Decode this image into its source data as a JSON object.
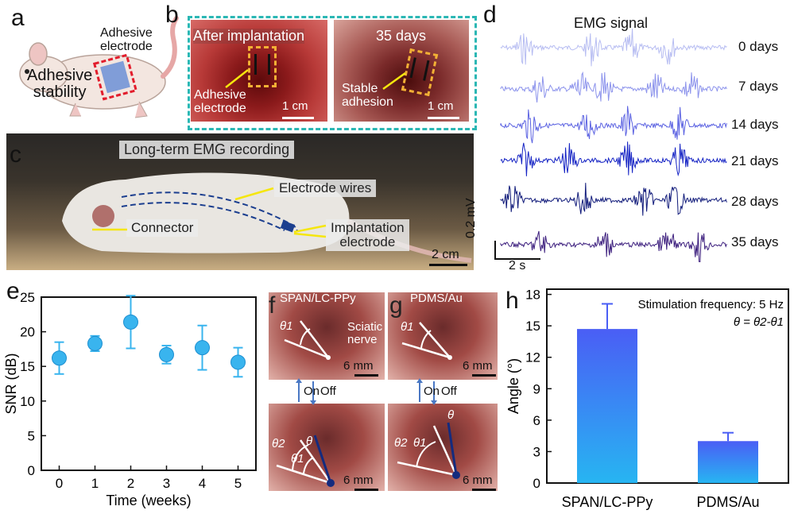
{
  "panel_labels": {
    "a": "a",
    "b": "b",
    "c": "c",
    "d": "d",
    "e": "e",
    "f": "f",
    "g": "g",
    "h": "h"
  },
  "panel_a": {
    "electrode": "Adhesive\nelectrode",
    "stability": "Adhesive\nstability"
  },
  "panel_b": {
    "left_title": "After implantation",
    "right_title": "35 days",
    "left_callout": "Adhesive\nelectrode",
    "right_callout": "Stable\nadhesion",
    "scale": "1 cm"
  },
  "panel_c": {
    "title": "Long-term EMG recording",
    "wires": "Electrode wires",
    "connector": "Connector",
    "implant": "Implantation\nelectrode",
    "scale": "2 cm"
  },
  "panel_d": {
    "title": "EMG signal",
    "rows": [
      {
        "label": "0 days",
        "color": "#b7bdf2"
      },
      {
        "label": "7 days",
        "color": "#8c93ec"
      },
      {
        "label": "14 days",
        "color": "#5c63e2"
      },
      {
        "label": "21 days",
        "color": "#1523c4"
      },
      {
        "label": "28 days",
        "color": "#101a7a"
      },
      {
        "label": "35 days",
        "color": "#3b1d7d"
      }
    ],
    "scale_v": "0.2 mV",
    "scale_t": "2 s"
  },
  "panel_f": {
    "material": "SPAN/LC-PPy",
    "nerve": "Sciatic\nnerve",
    "theta1": "θ1",
    "theta2": "θ2",
    "theta": "θ",
    "scale": "6 mm",
    "on": "On",
    "off": "Off"
  },
  "panel_g": {
    "material": "PDMS/Au",
    "theta1": "θ1",
    "theta2": "θ2",
    "theta": "θ",
    "scale": "6 mm",
    "on": "On",
    "off": "Off"
  },
  "chart_data": [
    {
      "type": "scatter",
      "panel": "e",
      "xlabel": "Time (weeks)",
      "ylabel": "SNR (dB)",
      "x": [
        0,
        1,
        2,
        3,
        4,
        5
      ],
      "y": [
        16.2,
        18.3,
        21.4,
        16.7,
        17.7,
        15.6
      ],
      "error": [
        2.3,
        1.1,
        3.8,
        1.3,
        3.2,
        2.1
      ],
      "xlim": [
        -0.5,
        5.5
      ],
      "ylim": [
        0,
        25
      ],
      "xticks": [
        "0",
        "1",
        "2",
        "3",
        "4",
        "5"
      ],
      "yticks": [
        "0",
        "5",
        "10",
        "15",
        "20",
        "25"
      ],
      "color": "#39b4ee"
    },
    {
      "type": "bar",
      "panel": "h",
      "categories": [
        "SPAN/LC-PPy",
        "PDMS/Au"
      ],
      "values": [
        14.7,
        4.0
      ],
      "error": [
        2.4,
        0.8
      ],
      "ylabel": "Angle (°)",
      "ylim": [
        0,
        18.5
      ],
      "yticks": [
        "0",
        "3",
        "6",
        "9",
        "12",
        "15",
        "18"
      ],
      "annotation_freq": "Stimulation frequency: 5 Hz",
      "annotation_eq": "θ = θ2-θ1",
      "color_top": "#4a5ef5",
      "color_bottom": "#27b5f2"
    }
  ]
}
